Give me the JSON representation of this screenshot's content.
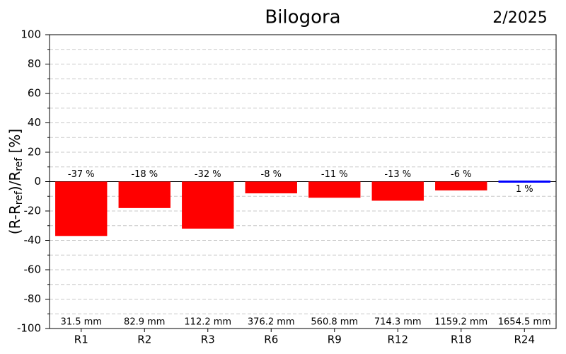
{
  "chart_data": {
    "type": "bar",
    "title": "Bilogora",
    "subtitle": "2/2025",
    "ylabel_parts": [
      "(R-R",
      "ref",
      ")/R",
      "ref",
      " [%]"
    ],
    "categories": [
      "R1",
      "R2",
      "R3",
      "R6",
      "R9",
      "R12",
      "R18",
      "R24"
    ],
    "values": [
      -37,
      -18,
      -32,
      -8,
      -11,
      -13,
      -6,
      1
    ],
    "value_labels": [
      "-37 %",
      "-18 %",
      "-32 %",
      "-8 %",
      "-11 %",
      "-13 %",
      "-6 %",
      "1 %"
    ],
    "colors": [
      "#ff0000",
      "#ff0000",
      "#ff0000",
      "#ff0000",
      "#ff0000",
      "#ff0000",
      "#ff0000",
      "#0000ff"
    ],
    "amount_labels": [
      "31.5 mm",
      "82.9 mm",
      "112.2 mm",
      "376.2 mm",
      "560.8 mm",
      "714.3 mm",
      "1159.2 mm",
      "1654.5 mm"
    ],
    "ylim": [
      -100,
      100
    ],
    "yticks": [
      -100,
      -80,
      -60,
      -40,
      -20,
      0,
      20,
      40,
      60,
      80,
      100
    ],
    "minor_yticks": [
      -90,
      -70,
      -50,
      -30,
      -10,
      10,
      30,
      50,
      70,
      90
    ],
    "grid": true
  }
}
